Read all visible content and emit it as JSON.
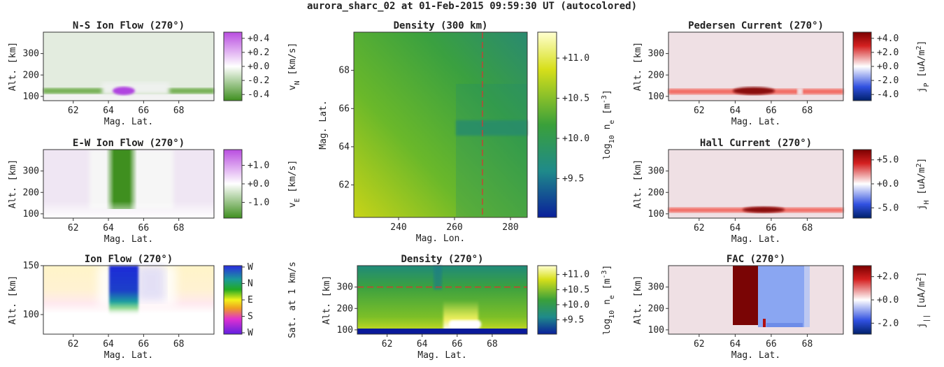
{
  "figure_title": "aurora_sharc_02 at 01-Feb-2015 09:59:30 UT (autocolored)",
  "chart_data": [
    {
      "id": "ns",
      "type": "heatmap",
      "title": "N-S Ion Flow (270°)",
      "xlabel": "Mag. Lat.",
      "ylabel": "Alt. [km]",
      "xlim": [
        60.3,
        70
      ],
      "ylim": [
        80,
        400
      ],
      "xticks": [
        62,
        64,
        66,
        68
      ],
      "yticks": [
        100,
        200,
        300
      ],
      "colorbar": {
        "label": "v_N [km/s]",
        "ticks": [
          "+0.4",
          "+0.2",
          "+0.0",
          "-0.2",
          "-0.4"
        ],
        "colors": [
          "#c06be0",
          "#ffffff",
          "#4c9a2a"
        ]
      }
    },
    {
      "id": "ew",
      "type": "heatmap",
      "title": "E-W Ion Flow (270°)",
      "xlabel": "Mag. Lat.",
      "ylabel": "Alt. [km]",
      "xlim": [
        60.3,
        70
      ],
      "ylim": [
        80,
        400
      ],
      "xticks": [
        62,
        64,
        66,
        68
      ],
      "yticks": [
        100,
        200,
        300
      ],
      "colorbar": {
        "label": "v_E [km/s]",
        "ticks": [
          "+1.0",
          "+0.0",
          "-1.0"
        ],
        "colors": [
          "#c06be0",
          "#ffffff",
          "#4c9a2a"
        ]
      }
    },
    {
      "id": "if",
      "type": "heatmap",
      "title": "Ion Flow (270°)",
      "xlabel": "Mag. Lat.",
      "ylabel": "Alt. [km]",
      "xlim": [
        60.3,
        70
      ],
      "ylim": [
        80,
        150
      ],
      "xticks": [
        62,
        64,
        66,
        68
      ],
      "yticks": [
        100,
        150
      ],
      "colorbar": {
        "label": "Sat. at 1 km/s",
        "ticks": [
          "W",
          "N",
          "E",
          "S",
          "W"
        ]
      }
    },
    {
      "id": "dmap",
      "type": "heatmap",
      "title": "Density (300 km)",
      "xlabel": "Mag. Lon.",
      "ylabel": "Mag. Lat.",
      "xlim": [
        224,
        286
      ],
      "ylim": [
        60.3,
        70
      ],
      "xticks": [
        240,
        260,
        280
      ],
      "yticks": [
        62,
        64,
        66,
        68
      ],
      "marker_lon": 270,
      "colorbar": {
        "label": "log_10 n_e [m^-3]",
        "ticks": [
          "+11.0",
          "+10.5",
          "+10.0",
          "+9.5"
        ]
      }
    },
    {
      "id": "dalt",
      "type": "heatmap",
      "title": "Density (270°)",
      "xlabel": "Mag. Lat.",
      "ylabel": "Alt. [km]",
      "xlim": [
        60.3,
        70
      ],
      "ylim": [
        80,
        400
      ],
      "xticks": [
        62,
        64,
        66,
        68
      ],
      "yticks": [
        100,
        200,
        300
      ],
      "marker_alt": 300,
      "colorbar": {
        "label": "log_10 n_e [m^-3]",
        "ticks": [
          "+11.0",
          "+10.5",
          "+10.0",
          "+9.5"
        ]
      }
    },
    {
      "id": "ped",
      "type": "heatmap",
      "title": "Pedersen Current (270°)",
      "xlabel": "Mag. Lat.",
      "ylabel": "Alt. [km]",
      "xlim": [
        60.3,
        70
      ],
      "ylim": [
        80,
        400
      ],
      "xticks": [
        62,
        64,
        66,
        68
      ],
      "yticks": [
        100,
        200,
        300
      ],
      "colorbar": {
        "label": "j_P [uA/m^2]",
        "ticks": [
          "+4.0",
          "+2.0",
          "+0.0",
          "-2.0",
          "-4.0"
        ]
      }
    },
    {
      "id": "hall",
      "type": "heatmap",
      "title": "Hall Current (270°)",
      "xlabel": "Mag. Lat.",
      "ylabel": "Alt. [km]",
      "xlim": [
        60.3,
        70
      ],
      "ylim": [
        80,
        400
      ],
      "xticks": [
        62,
        64,
        66,
        68
      ],
      "yticks": [
        100,
        200,
        300
      ],
      "colorbar": {
        "label": "j_H [uA/m^2]",
        "ticks": [
          "+5.0",
          "+0.0",
          "-5.0"
        ]
      }
    },
    {
      "id": "fac",
      "type": "heatmap",
      "title": "FAC (270°)",
      "xlabel": "Mag. Lat.",
      "ylabel": "Alt. [km]",
      "xlim": [
        60.3,
        70
      ],
      "ylim": [
        80,
        400
      ],
      "xticks": [
        62,
        64,
        66,
        68
      ],
      "yticks": [
        100,
        200,
        300
      ],
      "colorbar": {
        "label": "j_|| [uA/m^2]",
        "ticks": [
          "+2.0",
          "+0.0",
          "-2.0"
        ]
      }
    }
  ]
}
